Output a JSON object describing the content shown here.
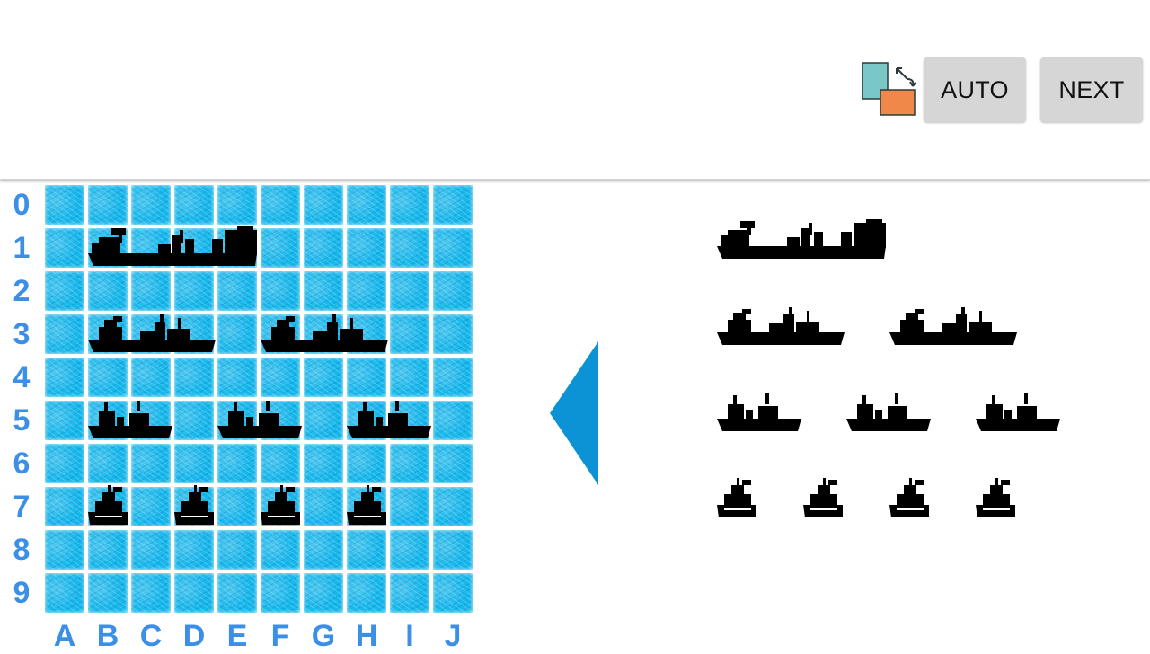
{
  "toolbar": {
    "rotate_icon": "rotate-orientation-icon",
    "auto_label": "AUTO",
    "next_label": "NEXT"
  },
  "board": {
    "rows": [
      "0",
      "1",
      "2",
      "3",
      "4",
      "5",
      "6",
      "7",
      "8",
      "9"
    ],
    "columns": [
      "A",
      "B",
      "C",
      "D",
      "E",
      "F",
      "G",
      "H",
      "I",
      "J"
    ],
    "placed_ships": [
      {
        "name": "battleship",
        "size": 4,
        "row": 1,
        "col": 1,
        "orientation": "horizontal"
      },
      {
        "name": "cruiser",
        "size": 3,
        "row": 3,
        "col": 1,
        "orientation": "horizontal"
      },
      {
        "name": "cruiser",
        "size": 3,
        "row": 3,
        "col": 5,
        "orientation": "horizontal"
      },
      {
        "name": "destroyer",
        "size": 2,
        "row": 5,
        "col": 1,
        "orientation": "horizontal"
      },
      {
        "name": "destroyer",
        "size": 2,
        "row": 5,
        "col": 4,
        "orientation": "horizontal"
      },
      {
        "name": "destroyer",
        "size": 2,
        "row": 5,
        "col": 7,
        "orientation": "horizontal"
      },
      {
        "name": "submarine",
        "size": 1,
        "row": 7,
        "col": 1,
        "orientation": "horizontal"
      },
      {
        "name": "submarine",
        "size": 1,
        "row": 7,
        "col": 3,
        "orientation": "horizontal"
      },
      {
        "name": "submarine",
        "size": 1,
        "row": 7,
        "col": 5,
        "orientation": "horizontal"
      },
      {
        "name": "submarine",
        "size": 1,
        "row": 7,
        "col": 7,
        "orientation": "horizontal"
      }
    ]
  },
  "fleet_panel": {
    "rows": [
      {
        "size": 4,
        "count": 1
      },
      {
        "size": 3,
        "count": 2
      },
      {
        "size": 2,
        "count": 3
      },
      {
        "size": 1,
        "count": 4
      }
    ]
  },
  "colors": {
    "water": "#14b7ec",
    "label_blue": "#3b8fe6",
    "arrow_blue": "#0b93d6",
    "ship": "#000000",
    "button_bg": "#d6d6d6"
  }
}
